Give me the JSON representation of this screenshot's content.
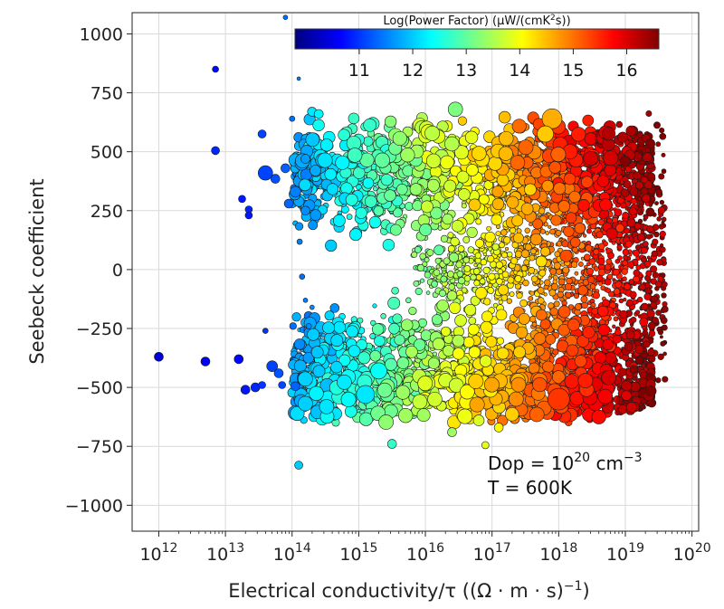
{
  "chart_data": {
    "type": "scatter",
    "xlabel_prefix": "Electrical conductivity/τ ((Ω · m · s)",
    "xlabel_sup": "−1",
    "xlabel_suffix": ")",
    "ylabel": "Seebeck coefficient",
    "x_scale": "log",
    "x_tick_exponents": [
      12,
      13,
      14,
      15,
      16,
      17,
      18,
      19,
      20
    ],
    "x_tick_base": "10",
    "xlim_log10": [
      11.6,
      20.1
    ],
    "y_ticks": [
      1000,
      750,
      500,
      250,
      0,
      -250,
      -500,
      -750,
      -1000
    ],
    "y_tick_labels": [
      "1000",
      "750",
      "500",
      "250",
      "0",
      "−250",
      "−500",
      "−750",
      "−1000"
    ],
    "ylim": [
      -1110,
      1090
    ],
    "grid": true,
    "colorbar": {
      "title_prefix": "Log(Power Factor) (μW/(cmK",
      "title_sup": "2",
      "title_suffix": "s))",
      "range": [
        9.8,
        16.6
      ],
      "ticks": [
        "11",
        "12",
        "13",
        "14",
        "15",
        "16"
      ],
      "tick_values": [
        11,
        12,
        13,
        14,
        15,
        16
      ],
      "colormap": "jet",
      "position": "top-right"
    },
    "annotation": {
      "line1_prefix": "Dop = 10",
      "line1_sup": "20",
      "line1_mid": " cm",
      "line1_sup2": "−3",
      "line2": "T = 600K"
    },
    "points": [
      [
        12.0,
        -370,
        10.4,
        5
      ],
      [
        12.7,
        -390,
        10.6,
        5
      ],
      [
        12.85,
        850,
        10.7,
        3.5
      ],
      [
        12.85,
        505,
        10.9,
        4.5
      ],
      [
        13.2,
        -380,
        10.7,
        5
      ],
      [
        13.25,
        300,
        10.8,
        4
      ],
      [
        13.35,
        255,
        10.9,
        4
      ],
      [
        13.35,
        230,
        10.8,
        4
      ],
      [
        13.3,
        -510,
        10.8,
        5
      ],
      [
        13.45,
        -500,
        10.9,
        5
      ],
      [
        13.55,
        -490,
        11.0,
        4
      ],
      [
        13.55,
        575,
        11.1,
        4.5
      ],
      [
        13.6,
        410,
        11.1,
        8
      ],
      [
        13.6,
        -260,
        11.0,
        3
      ],
      [
        13.75,
        385,
        11.2,
        5
      ],
      [
        13.7,
        -410,
        11.1,
        6
      ],
      [
        13.85,
        -490,
        11.1,
        4
      ],
      [
        13.8,
        -440,
        11.2,
        5
      ],
      [
        13.9,
        430,
        11.3,
        5
      ],
      [
        13.9,
        1070,
        11.4,
        2.5
      ],
      [
        14.1,
        810,
        11.5,
        2
      ],
      [
        14.0,
        640,
        11.4,
        3
      ],
      [
        14.15,
        -30,
        11.4,
        3
      ],
      [
        14.1,
        -830,
        12.0,
        4.5
      ],
      [
        14.2,
        -130,
        11.5,
        2.5
      ],
      [
        14.3,
        -160,
        11.6,
        2.5
      ],
      [
        14.25,
        -240,
        11.6,
        3
      ],
      [
        14.05,
        -495,
        11.3,
        5
      ],
      [
        13.95,
        280,
        11.3,
        5
      ],
      [
        14.05,
        330,
        11.5,
        6
      ],
      [
        14.2,
        250,
        11.6,
        5
      ],
      [
        14.3,
        670,
        12.2,
        5
      ],
      [
        14.4,
        660,
        12.3,
        5
      ],
      [
        14.2,
        470,
        11.7,
        5
      ],
      [
        14.35,
        420,
        11.8,
        6
      ]
    ],
    "clusters": [
      {
        "name": "upper-band",
        "x_range": [
          14.0,
          19.4
        ],
        "y_center": 385,
        "y_spread": 115,
        "count": 1400
      },
      {
        "name": "lower-band",
        "x_range": [
          14.0,
          19.4
        ],
        "y_center": -420,
        "y_spread": 120,
        "count": 1500
      },
      {
        "name": "middle-fill",
        "x_range": [
          15.8,
          19.6
        ],
        "y_center": 0,
        "y_spread": 230,
        "count": 1200
      }
    ],
    "featured_points": [
      [
        16.45,
        680,
        13.2,
        8
      ],
      [
        17.9,
        640,
        14.6,
        11
      ],
      [
        18.0,
        -550,
        15.4,
        12
      ],
      [
        17.8,
        575,
        14.4,
        9
      ],
      [
        16.8,
        -640,
        13.8,
        6
      ],
      [
        15.5,
        -740,
        12.7,
        5
      ],
      [
        16.4,
        -690,
        13.4,
        5
      ],
      [
        17.1,
        -670,
        14.1,
        5
      ],
      [
        16.9,
        -745,
        13.9,
        4
      ],
      [
        15.1,
        -530,
        12.2,
        10
      ],
      [
        15.3,
        -430,
        12.4,
        9
      ]
    ]
  }
}
